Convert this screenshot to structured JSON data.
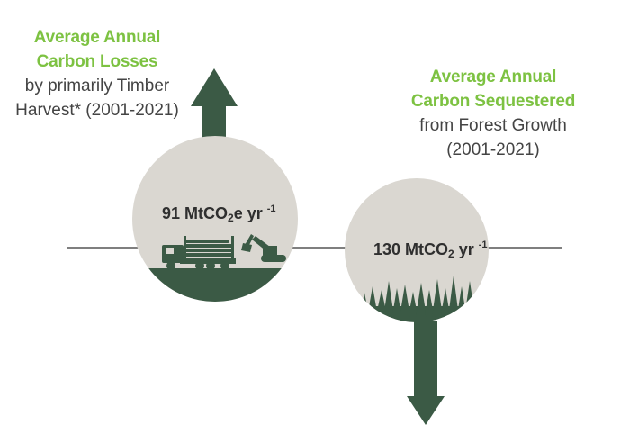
{
  "losses": {
    "title_line1": "Average Annual",
    "title_line2": "Carbon Losses",
    "sub_line1": "by primarily Timber",
    "sub_line2": "Harvest* (2001-2021)",
    "value_main": "91 MtCO",
    "value_sub": "2",
    "value_unit": "e yr",
    "value_exp": "-1"
  },
  "sequestered": {
    "title_line1": "Average Annual",
    "title_line2": "Carbon Sequestered",
    "sub_line1": "from Forest Growth",
    "sub_line2": "(2001-2021)",
    "value_main": "130 MtCO",
    "value_sub": "2",
    "value_unit": " yr",
    "value_exp": "-1"
  },
  "colors": {
    "dark_green": "#3b5a45",
    "circle_fill": "#dad7d1",
    "accent_green": "#7dc242",
    "line": "#555555"
  }
}
